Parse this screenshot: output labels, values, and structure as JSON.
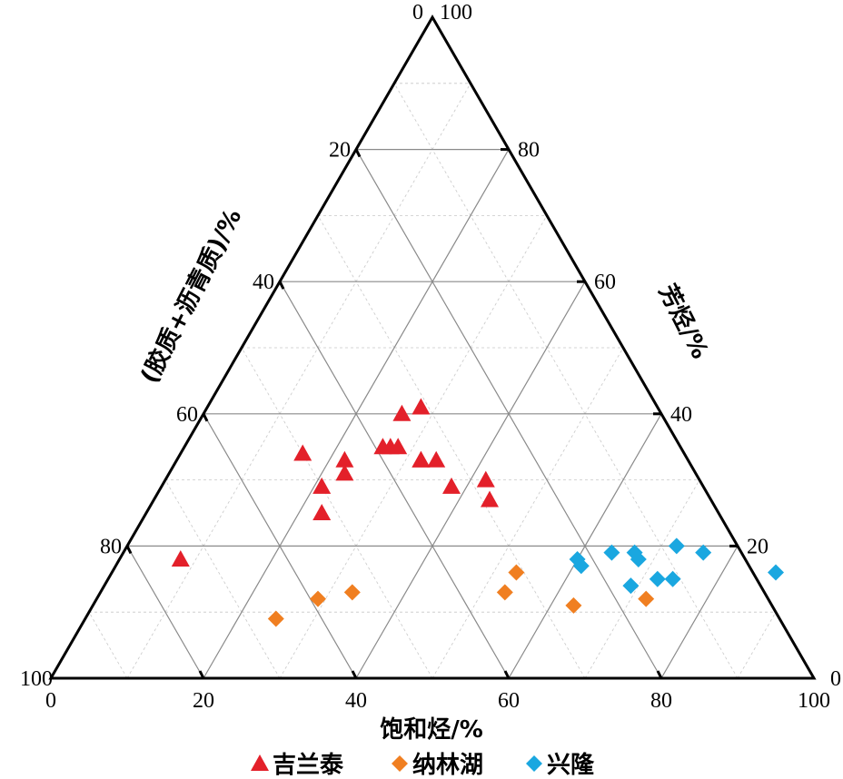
{
  "chart_data": {
    "type": "scatter",
    "subtype": "ternary",
    "axes": {
      "bottom": {
        "label": "饱和烃/%",
        "ticks": [
          "0",
          "20",
          "40",
          "60",
          "80",
          "100"
        ]
      },
      "right": {
        "label": "芳烃/%",
        "ticks": [
          "0",
          "20",
          "40",
          "60",
          "80",
          "100"
        ]
      },
      "left": {
        "label": "(胶质+沥青质)/%",
        "ticks": [
          "0",
          "20",
          "40",
          "60",
          "80",
          "100"
        ]
      }
    },
    "range": [
      0,
      100
    ],
    "grid": true,
    "legend": {
      "placement": "bottom"
    },
    "series": [
      {
        "name": "吉兰泰",
        "marker": "triangle",
        "color": "#e3202a",
        "points": [
          {
            "saturates": 8,
            "aromatics": 18,
            "resins_asphaltenes": 74
          },
          {
            "saturates": 16,
            "aromatics": 34,
            "resins_asphaltenes": 50
          },
          {
            "saturates": 22,
            "aromatics": 33,
            "resins_asphaltenes": 45
          },
          {
            "saturates": 23,
            "aromatics": 31,
            "resins_asphaltenes": 46
          },
          {
            "saturates": 21,
            "aromatics": 29,
            "resins_asphaltenes": 50
          },
          {
            "saturates": 23,
            "aromatics": 25,
            "resins_asphaltenes": 52
          },
          {
            "saturates": 26,
            "aromatics": 35,
            "resins_asphaltenes": 39
          },
          {
            "saturates": 26,
            "aromatics": 40,
            "resins_asphaltenes": 34
          },
          {
            "saturates": 28,
            "aromatics": 41,
            "resins_asphaltenes": 31
          },
          {
            "saturates": 27,
            "aromatics": 35,
            "resins_asphaltenes": 38
          },
          {
            "saturates": 28,
            "aromatics": 35,
            "resins_asphaltenes": 37
          },
          {
            "saturates": 32,
            "aromatics": 33,
            "resins_asphaltenes": 35
          },
          {
            "saturates": 32,
            "aromatics": 33,
            "resins_asphaltenes": 35
          },
          {
            "saturates": 34,
            "aromatics": 33,
            "resins_asphaltenes": 33
          },
          {
            "saturates": 38,
            "aromatics": 29,
            "resins_asphaltenes": 33
          },
          {
            "saturates": 42,
            "aromatics": 30,
            "resins_asphaltenes": 28
          },
          {
            "saturates": 44,
            "aromatics": 27,
            "resins_asphaltenes": 29
          }
        ]
      },
      {
        "name": "纳林湖",
        "marker": "diamond",
        "color": "#f07f21",
        "points": [
          {
            "saturates": 25,
            "aromatics": 9,
            "resins_asphaltenes": 66
          },
          {
            "saturates": 29,
            "aromatics": 12,
            "resins_asphaltenes": 59
          },
          {
            "saturates": 33,
            "aromatics": 13,
            "resins_asphaltenes": 54
          },
          {
            "saturates": 53,
            "aromatics": 16,
            "resins_asphaltenes": 31
          },
          {
            "saturates": 53,
            "aromatics": 13,
            "resins_asphaltenes": 34
          },
          {
            "saturates": 63,
            "aromatics": 11,
            "resins_asphaltenes": 26
          },
          {
            "saturates": 72,
            "aromatics": 12,
            "resins_asphaltenes": 16
          }
        ]
      },
      {
        "name": "兴隆",
        "marker": "diamond",
        "color": "#1aa7e0",
        "points": [
          {
            "saturates": 60,
            "aromatics": 18,
            "resins_asphaltenes": 22
          },
          {
            "saturates": 61,
            "aromatics": 17,
            "resins_asphaltenes": 22
          },
          {
            "saturates": 64,
            "aromatics": 19,
            "resins_asphaltenes": 17
          },
          {
            "saturates": 67,
            "aromatics": 19,
            "resins_asphaltenes": 14
          },
          {
            "saturates": 68,
            "aromatics": 18,
            "resins_asphaltenes": 14
          },
          {
            "saturates": 72,
            "aromatics": 20,
            "resins_asphaltenes": 8
          },
          {
            "saturates": 76,
            "aromatics": 19,
            "resins_asphaltenes": 5
          },
          {
            "saturates": 69,
            "aromatics": 14,
            "resins_asphaltenes": 17
          },
          {
            "saturates": 72,
            "aromatics": 15,
            "resins_asphaltenes": 13
          },
          {
            "saturates": 74,
            "aromatics": 15,
            "resins_asphaltenes": 11
          },
          {
            "saturates": 87,
            "aromatics": 16,
            "resins_asphaltenes": -3
          }
        ]
      }
    ]
  }
}
